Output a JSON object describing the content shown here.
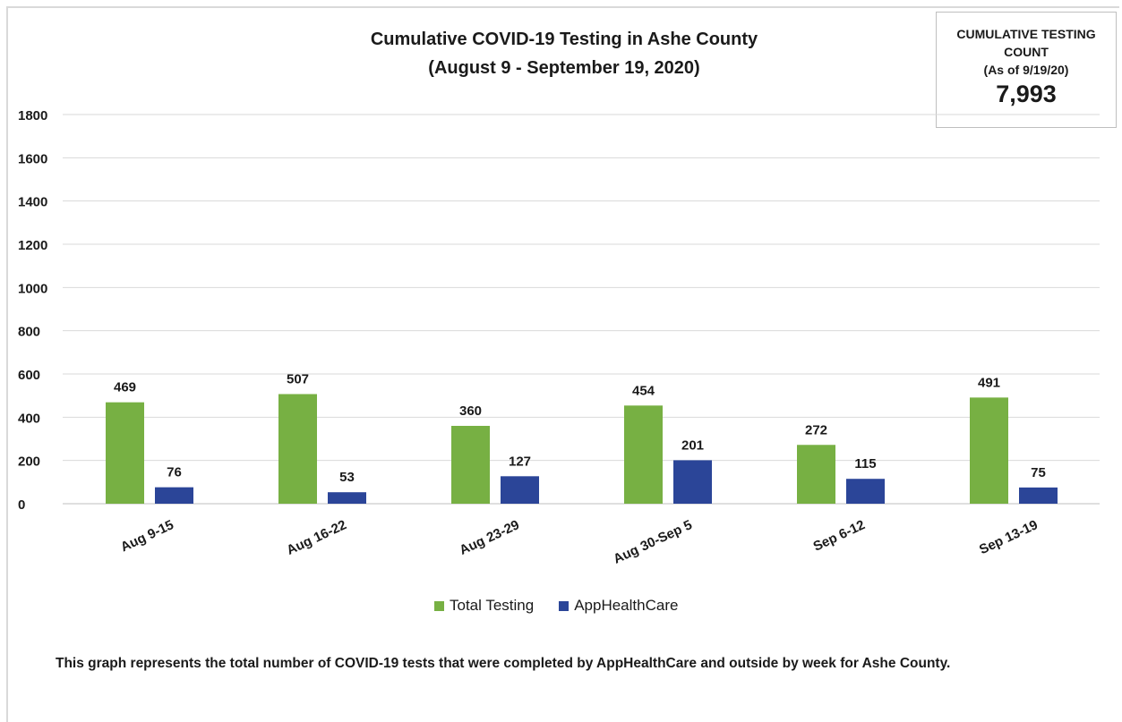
{
  "title_line1": "Cumulative COVID-19 Testing in Ashe County",
  "title_line2": "(August 9 - September 19, 2020)",
  "count_box": {
    "line1": "CUMULATIVE TESTING",
    "line2": "COUNT",
    "line3": "(As of 9/19/20)",
    "value": "7,993"
  },
  "footnote": "This graph represents the total number of COVID-19 tests that were completed by AppHealthCare and outside by week for Ashe County.",
  "chart_data": {
    "type": "bar",
    "categories": [
      "Aug 9-15",
      "Aug 16-22",
      "Aug 23-29",
      "Aug 30-Sep 5",
      "Sep 6-12",
      "Sep 13-19"
    ],
    "series": [
      {
        "name": "Total Testing",
        "values": [
          469,
          507,
          360,
          454,
          272,
          491
        ],
        "color": "#77b043"
      },
      {
        "name": "AppHealthCare",
        "values": [
          76,
          53,
          127,
          201,
          115,
          75
        ],
        "color": "#2b4598"
      }
    ],
    "yticks": [
      0,
      200,
      400,
      600,
      800,
      1000,
      1200,
      1400,
      1600,
      1800
    ],
    "ylim": [
      0,
      1800
    ],
    "grid": true,
    "legend_position": "bottom",
    "xlabel": "",
    "ylabel": ""
  }
}
